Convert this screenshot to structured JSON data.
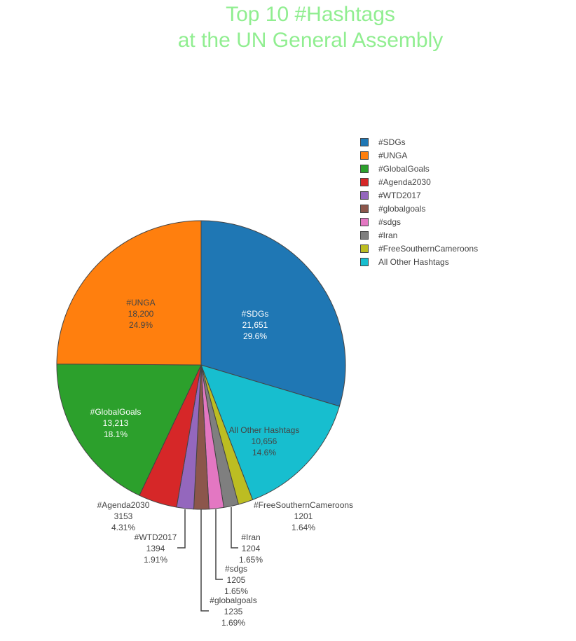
{
  "chart_data": {
    "type": "pie",
    "title_line1": "Top 10 #Hashtags",
    "title_line2": "at the UN General Assembly",
    "legend_position": "right",
    "slices": [
      {
        "label": "#SDGs",
        "value": 21651,
        "value_text": "21,651",
        "percent": "29.6%",
        "color": "#1f77b4"
      },
      {
        "label": "#UNGA",
        "value": 18200,
        "value_text": "18,200",
        "percent": "24.9%",
        "color": "#ff7f0e"
      },
      {
        "label": "#GlobalGoals",
        "value": 13213,
        "value_text": "13,213",
        "percent": "18.1%",
        "color": "#2ca02c"
      },
      {
        "label": "#Agenda2030",
        "value": 3153,
        "value_text": "3153",
        "percent": "4.31%",
        "color": "#d62728"
      },
      {
        "label": "#WTD2017",
        "value": 1394,
        "value_text": "1394",
        "percent": "1.91%",
        "color": "#9467bd"
      },
      {
        "label": "#globalgoals",
        "value": 1235,
        "value_text": "1235",
        "percent": "1.69%",
        "color": "#8c564b"
      },
      {
        "label": "#sdgs",
        "value": 1205,
        "value_text": "1205",
        "percent": "1.65%",
        "color": "#e377c2"
      },
      {
        "label": "#Iran",
        "value": 1204,
        "value_text": "1204",
        "percent": "1.65%",
        "color": "#7f7f7f"
      },
      {
        "label": "#FreeSouthernCameroons",
        "value": 1201,
        "value_text": "1201",
        "percent": "1.64%",
        "color": "#bcbd22"
      },
      {
        "label": "All Other Hashtags",
        "value": 10656,
        "value_text": "10,656",
        "percent": "14.6%",
        "color": "#17becf"
      }
    ],
    "clockwise_order": [
      0,
      9,
      8,
      7,
      6,
      5,
      4,
      3,
      2,
      1
    ]
  }
}
